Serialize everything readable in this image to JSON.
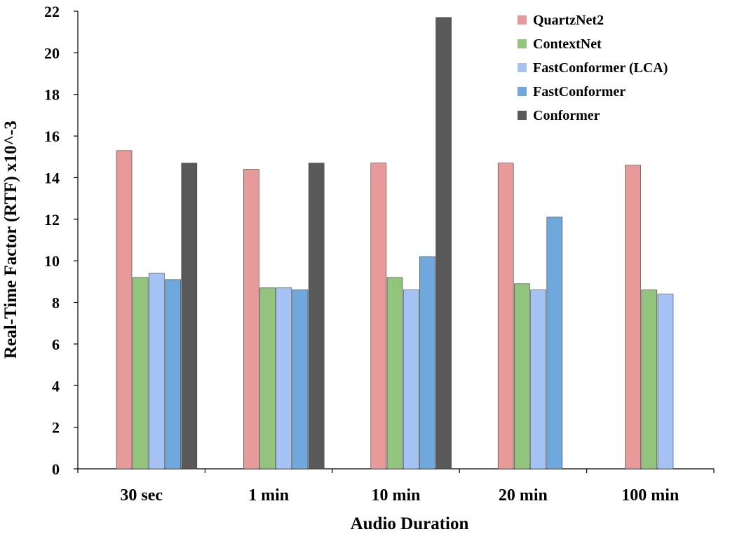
{
  "chart_data": {
    "type": "bar",
    "title": "",
    "xlabel": "Audio Duration",
    "ylabel": "Real-Time Factor (RTF) x10^-3",
    "ylim": [
      0,
      22
    ],
    "yticks": [
      0,
      2,
      4,
      6,
      8,
      10,
      12,
      14,
      16,
      18,
      20,
      22
    ],
    "grid": false,
    "legend_position": "top-right",
    "categories": [
      "30 sec",
      "1 min",
      "10 min",
      "20 min",
      "100 min"
    ],
    "series": [
      {
        "name": "QuartzNet2",
        "color": "#E8999A",
        "values": [
          15.3,
          14.4,
          14.7,
          14.7,
          14.6
        ]
      },
      {
        "name": "ContextNet",
        "color": "#93C47D",
        "values": [
          9.2,
          8.7,
          9.2,
          8.9,
          8.6
        ]
      },
      {
        "name": "FastConformer (LCA)",
        "color": "#A4C2F4",
        "values": [
          9.4,
          8.7,
          8.6,
          8.6,
          8.4
        ]
      },
      {
        "name": "FastConformer",
        "color": "#6FA8DC",
        "values": [
          9.1,
          8.6,
          10.2,
          12.1,
          null
        ]
      },
      {
        "name": "Conformer",
        "color": "#595959",
        "values": [
          14.7,
          14.7,
          21.7,
          null,
          null
        ]
      }
    ]
  }
}
